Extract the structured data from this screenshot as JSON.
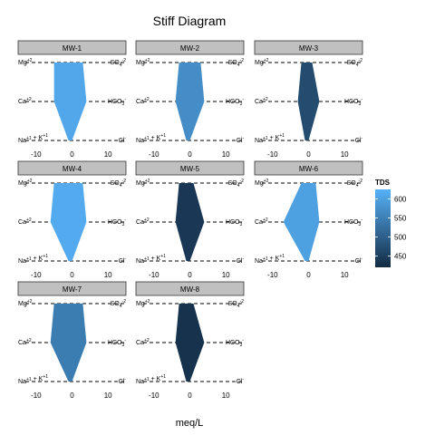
{
  "chart_data": {
    "type": "stiff",
    "title": "Stiff Diagram",
    "xlabel": "meq/L",
    "xlim": [
      -15,
      15
    ],
    "x_ticks": [
      -10,
      0,
      10
    ],
    "ion_levels": [
      "Mg",
      "Ca",
      "Na+K"
    ],
    "cation_labels": [
      "Mg+2",
      "Ca+2",
      "Na+1 + K+1"
    ],
    "anion_labels": [
      "SO4-2",
      "HCO3-",
      "Cl-"
    ],
    "legend": {
      "title": "TDS",
      "ticks": [
        450,
        500,
        550,
        600
      ],
      "range": [
        420,
        625
      ],
      "color_low": "#132b43",
      "color_high": "#56b1f7"
    },
    "panels": [
      {
        "name": "MW-1",
        "cations": [
          -5,
          -5,
          -1
        ],
        "anions": [
          3,
          4,
          0
        ],
        "tds": 610
      },
      {
        "name": "MW-2",
        "cations": [
          -3,
          -4,
          -1
        ],
        "anions": [
          3,
          4,
          0
        ],
        "tds": 570
      },
      {
        "name": "MW-3",
        "cations": [
          -2,
          -3,
          -1
        ],
        "anions": [
          1,
          3,
          0
        ],
        "tds": 470
      },
      {
        "name": "MW-4",
        "cations": [
          -5,
          -6,
          -1
        ],
        "anions": [
          3,
          4,
          0
        ],
        "tds": 615
      },
      {
        "name": "MW-5",
        "cations": [
          -3,
          -4,
          -1
        ],
        "anions": [
          1,
          4,
          0
        ],
        "tds": 440
      },
      {
        "name": "MW-6",
        "cations": [
          -2,
          -7,
          -1
        ],
        "anions": [
          2,
          3,
          0
        ],
        "tds": 600
      },
      {
        "name": "MW-7",
        "cations": [
          -5,
          -6,
          -1
        ],
        "anions": [
          3,
          4,
          0
        ],
        "tds": 545
      },
      {
        "name": "MW-8",
        "cations": [
          -3,
          -4,
          -1
        ],
        "anions": [
          1,
          4,
          0
        ],
        "tds": 430
      }
    ]
  }
}
